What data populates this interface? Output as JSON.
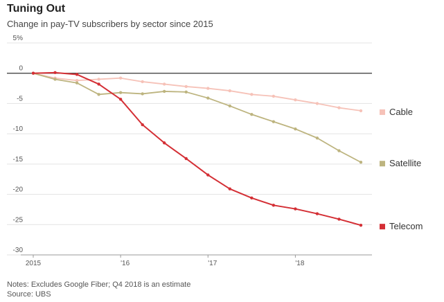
{
  "header": {
    "title": "Tuning Out",
    "subtitle": "Change in pay-TV subscribers by sector since 2015"
  },
  "footer": {
    "notes": "Notes: Excludes Google Fiber; Q4 2018 is an estimate",
    "source": "Source: UBS"
  },
  "chart_data": {
    "type": "line",
    "title": "Tuning Out",
    "subtitle": "Change in pay-TV subscribers by sector since 2015",
    "xlabel": "",
    "ylabel": "",
    "ylim": [
      -30,
      5
    ],
    "y_ticks": [
      5,
      0,
      -5,
      -10,
      -15,
      -20,
      -25,
      -30
    ],
    "y_tick_labels": [
      "5%",
      "0",
      "-5",
      "-10",
      "-15",
      "-20",
      "-25",
      "-30"
    ],
    "x_ticks": [
      0,
      4,
      8,
      12
    ],
    "x_tick_labels": [
      "2015",
      "'16",
      "'17",
      "'18"
    ],
    "x": [
      0,
      1,
      2,
      3,
      4,
      5,
      6,
      7,
      8,
      9,
      10,
      11,
      12,
      13,
      14,
      15
    ],
    "grid": true,
    "legend": "right",
    "series": [
      {
        "name": "Cable",
        "color": "#f6c2b8",
        "values": [
          0,
          -0.8,
          -1.2,
          -1.0,
          -0.8,
          -1.4,
          -1.8,
          -2.2,
          -2.5,
          -2.9,
          -3.5,
          -3.8,
          -4.4,
          -5.0,
          -5.7,
          -6.2
        ]
      },
      {
        "name": "Satellite",
        "color": "#bdb47f",
        "values": [
          0,
          -1.0,
          -1.6,
          -3.5,
          -3.2,
          -3.4,
          -3.0,
          -3.1,
          -4.1,
          -5.4,
          -6.8,
          -8.0,
          -9.2,
          -10.7,
          -12.8,
          -14.7
        ]
      },
      {
        "name": "Telecom",
        "color": "#d42f35",
        "values": [
          0,
          0.1,
          -0.2,
          -1.8,
          -4.3,
          -8.5,
          -11.5,
          -14.1,
          -16.8,
          -19.1,
          -20.6,
          -21.8,
          -22.4,
          -23.2,
          -24.1,
          -25.1
        ]
      }
    ]
  }
}
